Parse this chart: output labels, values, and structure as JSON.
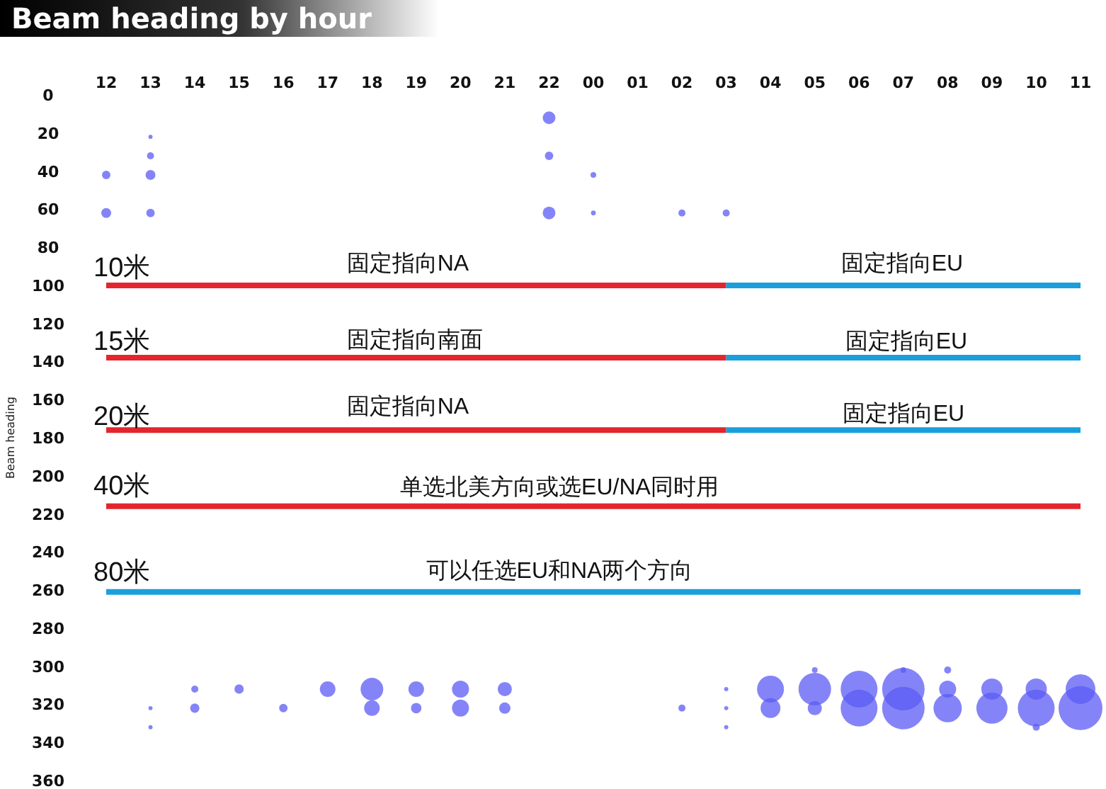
{
  "chart_data": {
    "type": "bubble",
    "title": "Beam heading by hour",
    "ylabel": "Beam heading",
    "categories": [
      "12",
      "13",
      "14",
      "15",
      "16",
      "17",
      "18",
      "19",
      "20",
      "21",
      "22",
      "00",
      "01",
      "02",
      "03",
      "04",
      "05",
      "06",
      "07",
      "08",
      "09",
      "10",
      "11"
    ],
    "ylim": [
      360,
      0
    ],
    "yticks": [
      0,
      20,
      40,
      60,
      80,
      100,
      120,
      140,
      160,
      180,
      200,
      220,
      240,
      260,
      280,
      300,
      320,
      340,
      360
    ],
    "series": [
      {
        "color": "#5b5bf5",
        "x": [
          "12",
          "12",
          "13",
          "13",
          "13",
          "13",
          "22",
          "22",
          "22",
          "00",
          "00",
          "02",
          "03",
          "13",
          "13",
          "14",
          "14",
          "15",
          "16",
          "17",
          "18",
          "18",
          "19",
          "19",
          "20",
          "20",
          "21",
          "21",
          "02",
          "03",
          "03",
          "03",
          "04",
          "04",
          "05",
          "05",
          "05",
          "06",
          "06",
          "07",
          "07",
          "07",
          "08",
          "08",
          "08",
          "09",
          "09",
          "10",
          "10",
          "10",
          "11",
          "11"
        ],
        "values": [
          42,
          62,
          22,
          32,
          42,
          62,
          12,
          32,
          62,
          42,
          62,
          62,
          62,
          322,
          332,
          312,
          322,
          312,
          322,
          312,
          312,
          322,
          312,
          322,
          312,
          322,
          312,
          322,
          322,
          312,
          322,
          332,
          312,
          322,
          302,
          312,
          322,
          312,
          322,
          302,
          312,
          322,
          302,
          312,
          322,
          312,
          322,
          312,
          322,
          332,
          312,
          322
        ],
        "sizes": [
          0.037,
          0.051,
          0.009,
          0.026,
          0.051,
          0.037,
          0.084,
          0.037,
          0.084,
          0.017,
          0.012,
          0.026,
          0.026,
          0.009,
          0.009,
          0.026,
          0.045,
          0.045,
          0.037,
          0.126,
          0.266,
          0.126,
          0.126,
          0.057,
          0.15,
          0.15,
          0.104,
          0.067,
          0.026,
          0.009,
          0.009,
          0.009,
          0.376,
          0.204,
          0.017,
          0.55,
          0.104,
          0.703,
          0.703,
          0.017,
          0.937,
          0.937,
          0.026,
          0.15,
          0.416,
          0.234,
          0.504,
          0.234,
          0.703,
          0.026,
          0.459,
          1
        ]
      },
      {
        "type": "line",
        "color": "#e3262e",
        "values": [
          100,
          100,
          100,
          100,
          100,
          100,
          100,
          100,
          100,
          100,
          100,
          100,
          100,
          100,
          100,
          null,
          null,
          null,
          null,
          null,
          null,
          null,
          null
        ]
      },
      {
        "type": "line",
        "color": "#1a9fdc",
        "values": [
          null,
          null,
          null,
          null,
          null,
          null,
          null,
          null,
          null,
          null,
          null,
          null,
          null,
          null,
          100,
          100,
          100,
          100,
          100,
          100,
          100,
          100,
          100
        ]
      },
      {
        "type": "line",
        "color": "#e3262e",
        "values": [
          138,
          138,
          138,
          138,
          138,
          138,
          138,
          138,
          138,
          138,
          138,
          138,
          138,
          138,
          138,
          null,
          null,
          null,
          null,
          null,
          null,
          null,
          null
        ]
      },
      {
        "type": "line",
        "color": "#1a9fdc",
        "values": [
          null,
          null,
          null,
          null,
          null,
          null,
          null,
          null,
          null,
          null,
          null,
          null,
          null,
          null,
          138,
          138,
          138,
          138,
          138,
          138,
          138,
          138,
          138
        ]
      },
      {
        "type": "line",
        "color": "#e3262e",
        "values": [
          176,
          176,
          176,
          176,
          176,
          176,
          176,
          176,
          176,
          176,
          176,
          176,
          176,
          176,
          176,
          null,
          null,
          null,
          null,
          null,
          null,
          null,
          null
        ]
      },
      {
        "type": "line",
        "color": "#1a9fdc",
        "values": [
          null,
          null,
          null,
          null,
          null,
          null,
          null,
          null,
          null,
          null,
          null,
          null,
          null,
          null,
          176,
          176,
          176,
          176,
          176,
          176,
          176,
          176,
          176
        ]
      },
      {
        "type": "line",
        "color": "#e3262e",
        "values": [
          216,
          216,
          216,
          216,
          216,
          216,
          216,
          216,
          216,
          216,
          216,
          216,
          216,
          216,
          216,
          216,
          216,
          216,
          216,
          216,
          216,
          216,
          216
        ]
      },
      {
        "type": "line",
        "color": "#1a9fdc",
        "values": [
          261,
          261,
          261,
          261,
          261,
          261,
          261,
          261,
          261,
          261,
          261,
          261,
          261,
          261,
          261,
          261,
          261,
          261,
          261,
          261,
          261,
          261,
          261
        ]
      }
    ],
    "annotations": [
      "10米",
      "固定指向NA",
      "固定指向EU",
      "15米",
      "固定指向南面",
      "固定指向EU",
      "20米",
      "固定指向NA",
      "固定指向EU",
      "40米",
      "单选北美方向或选EU/NA同时用",
      "80米",
      "可以任选EU和NA两个方向"
    ]
  }
}
